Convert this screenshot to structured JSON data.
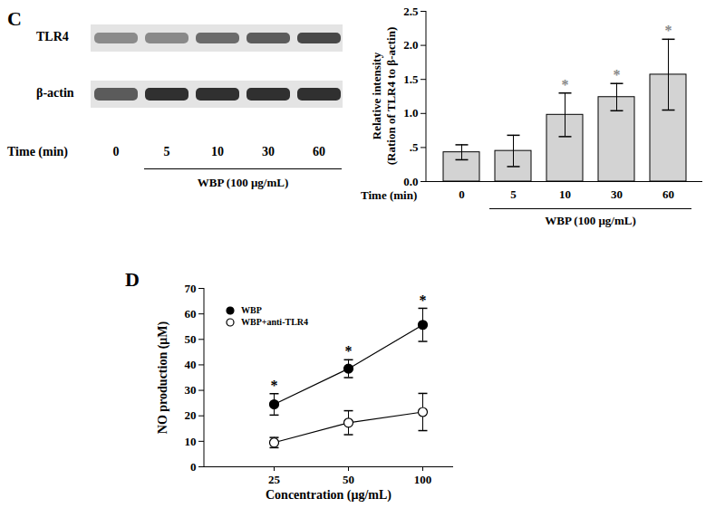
{
  "blot": {
    "panel": "C",
    "rows": [
      "TLR4",
      "β-actin"
    ],
    "lanes_label": "Time (min)",
    "lanes": [
      "0",
      "5",
      "10",
      "30",
      "60"
    ],
    "treatment": "WBP (100 μg/mL)"
  },
  "chart_data": [
    {
      "type": "bar",
      "categories": [
        "0",
        "5",
        "10",
        "30",
        "60"
      ],
      "values": [
        0.43,
        0.45,
        0.98,
        1.24,
        1.57
      ],
      "errors": [
        0.11,
        0.23,
        0.32,
        0.2,
        0.52
      ],
      "color": "#d3d3d3",
      "xlabel": "Time (min)",
      "ylabel": "Relative intensity\n(Ration of TLR4 to β-actin)",
      "treatment": "WBP (100 μg/mL)",
      "ylim": [
        0,
        2.5
      ],
      "yticks": [
        {
          "value": 0,
          "label": "0.0"
        },
        {
          "value": 0.5,
          "label": ".5"
        },
        {
          "value": 1,
          "label": "1.0"
        },
        {
          "value": 1.5,
          "label": "1.5"
        },
        {
          "value": 2,
          "label": "2.0"
        },
        {
          "value": 2.5,
          "label": "2.5"
        }
      ],
      "annotations": [
        {
          "category": "10",
          "text": "*"
        },
        {
          "category": "30",
          "text": "*"
        },
        {
          "category": "60",
          "text": "*"
        }
      ]
    },
    {
      "type": "line",
      "title": "D",
      "categories": [
        "25",
        "50",
        "100"
      ],
      "series": [
        {
          "name": "WBP",
          "color": "#000000",
          "marker": "filled",
          "values": [
            24.5,
            38.5,
            55.7
          ],
          "errors": [
            4.2,
            3.5,
            6.5
          ]
        },
        {
          "name": "WBP+anti-TLR4",
          "color": "#000000",
          "marker": "open",
          "values": [
            9.5,
            17.3,
            21.5
          ],
          "errors": [
            2.0,
            4.7,
            7.3
          ]
        }
      ],
      "xlabel": "Concentration (μg/mL)",
      "ylabel": "NO production (μM)",
      "ylim": [
        0,
        70
      ],
      "yticks": [
        0,
        10,
        20,
        30,
        40,
        50,
        60,
        70
      ],
      "legend": "upper left",
      "annotations": [
        {
          "category": "25",
          "series": "WBP",
          "text": "*"
        },
        {
          "category": "50",
          "series": "WBP",
          "text": "*"
        },
        {
          "category": "100",
          "series": "WBP",
          "text": "*"
        }
      ]
    }
  ]
}
